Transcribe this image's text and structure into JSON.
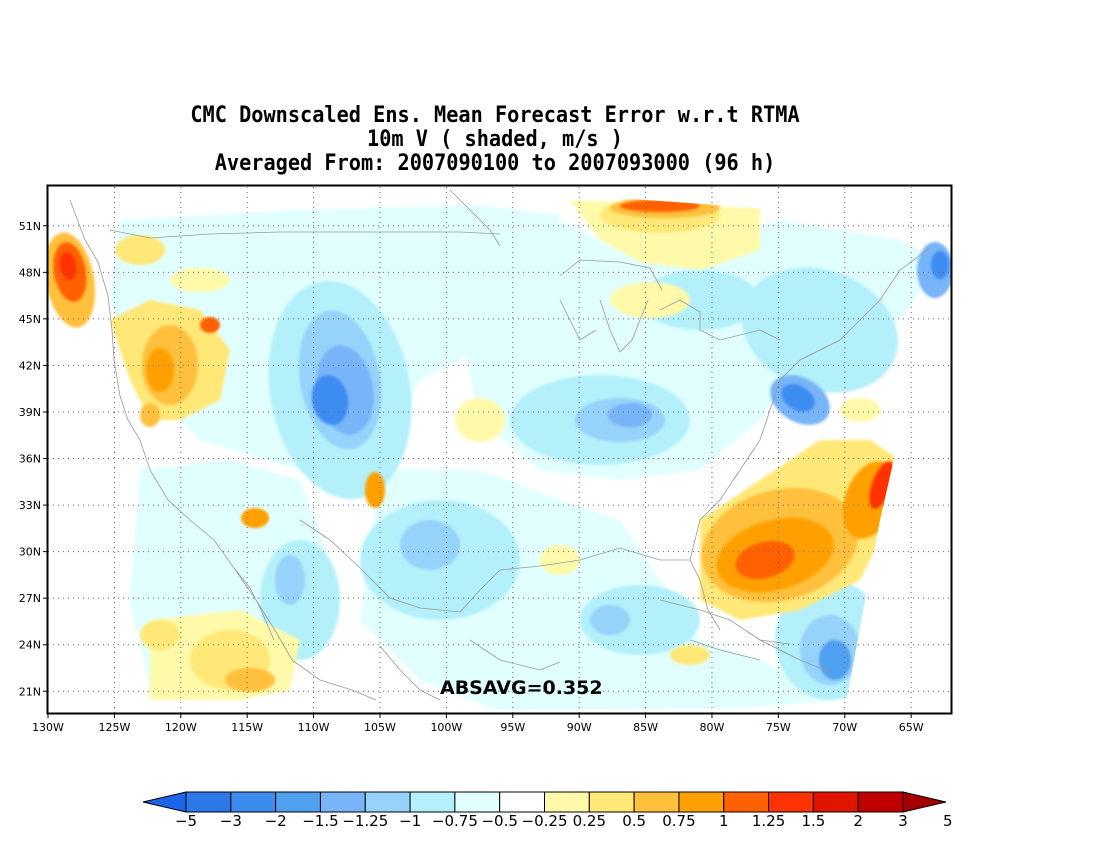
{
  "title": {
    "line1": "CMC Downscaled Ens. Mean Forecast Error w.r.t RTMA",
    "line2": "10m V ( shaded, m/s )",
    "line3": "Averaged From: 2007090100 to 2007093000 (96 h)"
  },
  "map": {
    "annotation": "ABSAVG=0.352",
    "lat_labels": [
      "51N",
      "48N",
      "45N",
      "42N",
      "39N",
      "36N",
      "33N",
      "30N",
      "27N",
      "24N",
      "21N"
    ],
    "lon_labels": [
      "130W",
      "125W",
      "120W",
      "115W",
      "110W",
      "105W",
      "100W",
      "95W",
      "90W",
      "85W",
      "80W",
      "75W",
      "70W",
      "65W"
    ],
    "lon_range": [
      -130,
      -62
    ],
    "lat_range": [
      19.6,
      53.5
    ]
  },
  "colorbar": {
    "labels": [
      "−5",
      "−3",
      "−2",
      "−1.5",
      "−1.25",
      "−1",
      "−0.75",
      "−0.5",
      "−0.25",
      "0.25",
      "0.5",
      "0.75",
      "1",
      "1.25",
      "1.5",
      "2",
      "3",
      "5"
    ],
    "colors": [
      "#1e64e6",
      "#2d78e8",
      "#3c8cf0",
      "#50a0f0",
      "#78b4f8",
      "#96d2fa",
      "#b4f0fa",
      "#e1ffff",
      "#ffffff",
      "#fffaaa",
      "#ffe878",
      "#ffc03c",
      "#ffa000",
      "#ff6000",
      "#ff3200",
      "#e11400",
      "#c00000",
      "#a50000"
    ]
  },
  "colors": {
    "ocean_land": "#ffffff",
    "coast": "#9a9a9a",
    "frame": "#000000"
  }
}
